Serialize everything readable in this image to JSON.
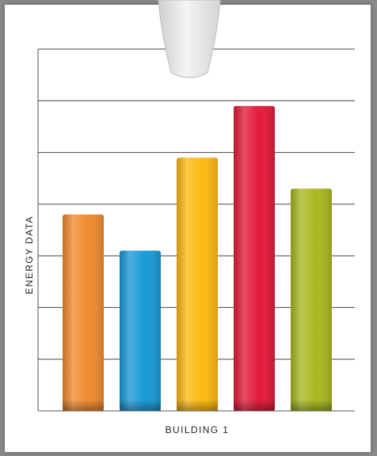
{
  "chart_data": {
    "type": "bar",
    "categories": [
      "",
      "",
      "",
      "",
      ""
    ],
    "values": [
      3.8,
      3.1,
      4.9,
      5.9,
      4.3
    ],
    "colors": [
      "#f08a30",
      "#1a9ad6",
      "#fdb913",
      "#e31b3b",
      "#a8b820"
    ],
    "xlabel": "BUILDING 1",
    "ylabel": "ENERGY DATA",
    "ylim": [
      0,
      7
    ],
    "grid": true,
    "legend": "none"
  }
}
